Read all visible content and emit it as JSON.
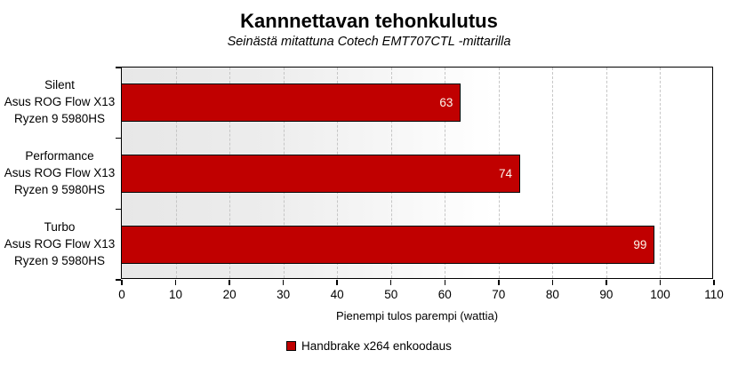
{
  "chart_data": {
    "type": "bar",
    "orientation": "horizontal",
    "title": "Kannnettavan tehonkulutus",
    "subtitle": "Seinästä mitattuna Cotech EMT707CTL -mittarilla",
    "xlabel": "Pienempi tulos parempi (wattia)",
    "categories": [
      {
        "lines": [
          "Silent",
          "Asus ROG Flow X13",
          "Ryzen 9 5980HS"
        ]
      },
      {
        "lines": [
          "Performance",
          "Asus ROG Flow X13",
          "Ryzen 9 5980HS"
        ]
      },
      {
        "lines": [
          "Turbo",
          "Asus ROG Flow X13",
          "Ryzen 9 5980HS"
        ]
      }
    ],
    "series": [
      {
        "name": "Handbrake x264 enkoodaus",
        "values": [
          63,
          74,
          99
        ]
      }
    ],
    "xlim": [
      0,
      110
    ],
    "tick_step": 10,
    "tick_labels": [
      "0",
      "10",
      "20",
      "30",
      "40",
      "50",
      "60",
      "70",
      "80",
      "90",
      "100",
      "110"
    ],
    "grid": "vertical-dashed",
    "legend_position": "bottom",
    "colors": {
      "bar_fill": "#c00000",
      "bar_border": "#000000",
      "value_label": "#fdf7ec",
      "plot_bg_start": "#e7e7e7",
      "plot_bg_end": "#ffffff",
      "gridline": "#c6c6c6",
      "axis": "#000000"
    }
  }
}
